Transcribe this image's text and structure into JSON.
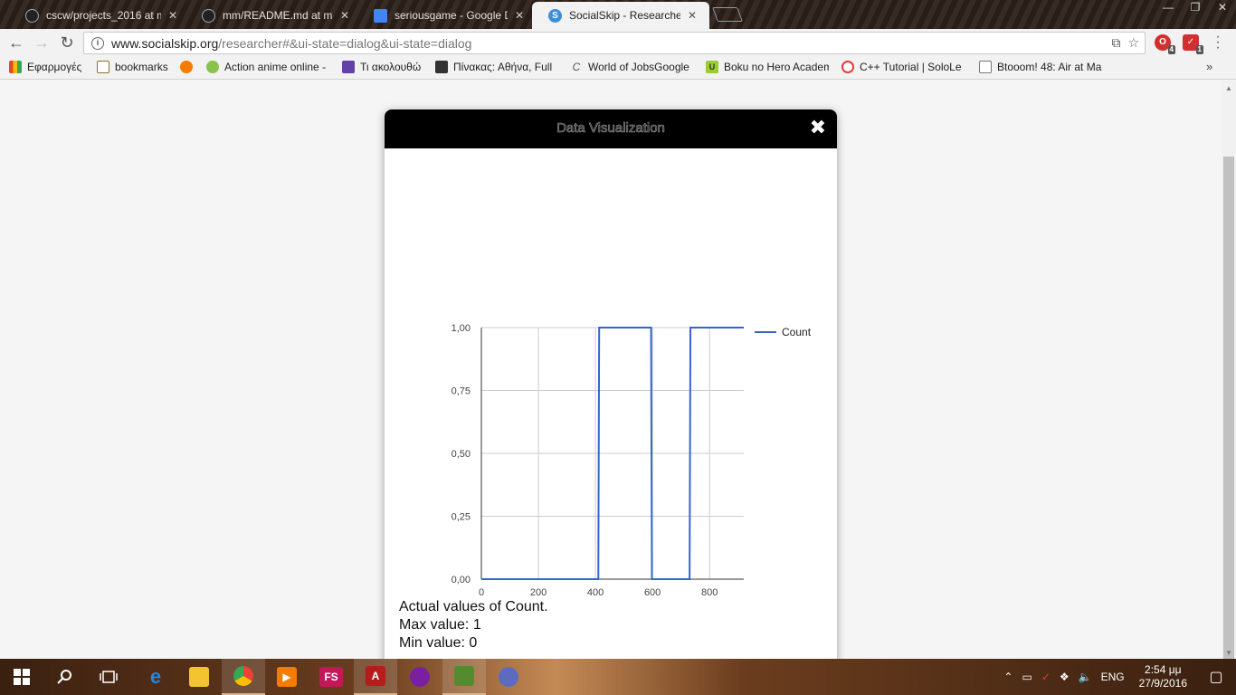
{
  "browser": {
    "tabs": [
      {
        "label": "cscw/projects_2016 at m",
        "favicon_color": "#222222",
        "active": false
      },
      {
        "label": "mm/README.md at ma",
        "favicon_color": "#222222",
        "active": false
      },
      {
        "label": "seriousgame - Google D",
        "favicon_color": "#4285f4",
        "active": false
      },
      {
        "label": "SocialSkip - Researcher",
        "favicon_color": "#3d8fd9",
        "active": true
      }
    ],
    "url_host": "www.socialskip.org",
    "url_path": "/researcher#&ui-state=dialog&ui-state=dialog",
    "extensions": [
      {
        "name": "opera-icon",
        "color": "#d32f2f",
        "badge": "4"
      },
      {
        "name": "adblock-icon",
        "color": "#d32f2f",
        "badge": "1"
      }
    ],
    "bookmarks": [
      {
        "label": "Εφαρμογές",
        "icon": "apps-icon",
        "color": "#4285f4"
      },
      {
        "label": "bookmarks",
        "icon": "folder-icon",
        "color": "#e8c15a"
      },
      {
        "label": "",
        "icon": "orange-icon",
        "color": "#f57c00"
      },
      {
        "label": "Action anime online -",
        "icon": "anime-icon",
        "color": "#8bc34a"
      },
      {
        "label": "Τι ακολουθώ",
        "icon": "twitch-icon",
        "color": "#6441a5"
      },
      {
        "label": "Πίνακας: Αθήνα, Full",
        "icon": "board-icon",
        "color": "#333333"
      },
      {
        "label": "World of JobsGoogle",
        "icon": "c-icon",
        "color": "#555555"
      },
      {
        "label": "Boku no Hero Academ",
        "icon": "u-icon",
        "color": "#9acd32"
      },
      {
        "label": "C++ Tutorial | SoloLe",
        "icon": "sololearn-icon",
        "color": "#e53935"
      },
      {
        "label": "Btooom! 48: Air at Ma",
        "icon": "page-icon",
        "color": "#999999"
      }
    ]
  },
  "dialog": {
    "title": "Data Visualization",
    "close_glyph": "✖",
    "summary_title": "Actual values of Count.",
    "summary_max": "Max value: 1",
    "summary_min": "Min value: 0"
  },
  "chart_data": {
    "type": "line",
    "title": "",
    "xlabel": "",
    "ylabel": "",
    "xlim": [
      0,
      920
    ],
    "ylim": [
      0,
      1
    ],
    "x_ticks": [
      0,
      200,
      400,
      600,
      800
    ],
    "y_ticks": [
      "0,00",
      "0,25",
      "0,50",
      "0,75",
      "1,00"
    ],
    "y_tick_values": [
      0,
      0.25,
      0.5,
      0.75,
      1
    ],
    "grid": true,
    "legend_position": "right",
    "series": [
      {
        "name": "Count",
        "color": "#3366cc",
        "x": [
          0,
          410,
          413,
          595,
          598,
          730,
          733,
          920
        ],
        "y": [
          0,
          0,
          1,
          1,
          0,
          0,
          1,
          1
        ]
      }
    ]
  },
  "taskbar": {
    "apps": [
      {
        "name": "start-icon",
        "color": "#ffffff"
      },
      {
        "name": "search-icon",
        "color": "#ffffff"
      },
      {
        "name": "task-view-icon",
        "color": "#ffffff"
      },
      {
        "name": "edge-icon",
        "color": "#1e88e5"
      },
      {
        "name": "explorer-icon",
        "color": "#f4c430"
      },
      {
        "name": "chrome-icon",
        "color": "#4caf50"
      },
      {
        "name": "media-player-icon",
        "color": "#f57c00"
      },
      {
        "name": "fs-icon",
        "color": "#c2185b"
      },
      {
        "name": "acrobat-icon",
        "color": "#b71c1c"
      },
      {
        "name": "cat-app-icon",
        "color": "#7b1fa2"
      },
      {
        "name": "notepad-icon",
        "color": "#558b2f"
      },
      {
        "name": "paint-icon",
        "color": "#5c6bc0"
      }
    ],
    "fs_label": "FS",
    "language": "ENG",
    "time": "2:54 μμ",
    "date": "27/9/2016"
  }
}
